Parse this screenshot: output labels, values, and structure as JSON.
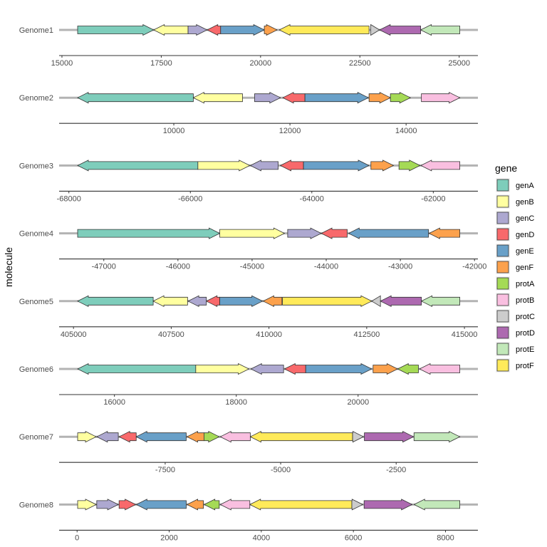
{
  "chart_data": {
    "type": "gene-arrow-map",
    "ylabel": "molecule",
    "legend": {
      "title": "gene",
      "placement": "right"
    },
    "colors": {
      "genA": "#7ECDBB",
      "genB": "#FFFFA0",
      "genC": "#ADA8D0",
      "genD": "#F8696B",
      "genE": "#69A0C8",
      "genF": "#FCA14C",
      "protA": "#A5DA56",
      "protB": "#F9BFE0",
      "protC": "#CCCCCC",
      "protD": "#AD69B0",
      "protE": "#C2E8B9",
      "protF": "#FFEA5A"
    },
    "legend_entries": [
      "genA",
      "genB",
      "genC",
      "genD",
      "genE",
      "genF",
      "protA",
      "protB",
      "protC",
      "protD",
      "protE",
      "protF"
    ],
    "facets": [
      {
        "molecule": "Genome1",
        "ticks": [
          15000,
          17500,
          20000,
          22500,
          25000
        ],
        "genes": [
          {
            "gene": "genA",
            "start": 15395,
            "end": 17309
          },
          {
            "gene": "genB",
            "start": 18175,
            "end": 17309
          },
          {
            "gene": "genC",
            "start": 18175,
            "end": 18654
          },
          {
            "gene": "genD",
            "start": 18995,
            "end": 18654
          },
          {
            "gene": "genE",
            "start": 18995,
            "end": 20094
          },
          {
            "gene": "genF",
            "start": 20094,
            "end": 20417
          },
          {
            "gene": "protF",
            "start": 22731,
            "end": 20471
          },
          {
            "gene": "protC",
            "start": 22774,
            "end": 22995
          },
          {
            "gene": "protD",
            "start": 24030,
            "end": 22995
          },
          {
            "gene": "protE",
            "start": 25016,
            "end": 24030
          }
        ]
      },
      {
        "molecule": "Genome2",
        "ticks": [
          10000,
          12000,
          14000
        ],
        "genes": [
          {
            "gene": "genA",
            "start": 10336,
            "end": 8344
          },
          {
            "gene": "genB",
            "start": 11183,
            "end": 10336
          },
          {
            "gene": "genC",
            "start": 11391,
            "end": 11837
          },
          {
            "gene": "genD",
            "start": 12258,
            "end": 11877
          },
          {
            "gene": "genE",
            "start": 12258,
            "end": 13350
          },
          {
            "gene": "genF",
            "start": 13362,
            "end": 13730
          },
          {
            "gene": "protA",
            "start": 13730,
            "end": 14074
          },
          {
            "gene": "protB",
            "start": 14263,
            "end": 14925
          }
        ]
      },
      {
        "molecule": "Genome3",
        "ticks": [
          -68000,
          -66000,
          -64000,
          -62000
        ],
        "genes": [
          {
            "gene": "genA",
            "start": -65876,
            "end": -67856
          },
          {
            "gene": "genB",
            "start": -65876,
            "end": -65021
          },
          {
            "gene": "genC",
            "start": -64554,
            "end": -65013
          },
          {
            "gene": "genD",
            "start": -64137,
            "end": -64519
          },
          {
            "gene": "genE",
            "start": -64137,
            "end": -63059
          },
          {
            "gene": "genF",
            "start": -63027,
            "end": -62655
          },
          {
            "gene": "protA",
            "start": -62565,
            "end": -62218
          },
          {
            "gene": "protB",
            "start": -61563,
            "end": -62205
          }
        ]
      },
      {
        "molecule": "Genome4",
        "ticks": [
          -47000,
          -46000,
          -45000,
          -44000,
          -43000,
          -42000
        ],
        "genes": [
          {
            "gene": "genA",
            "start": -47353,
            "end": -45436
          },
          {
            "gene": "genB",
            "start": -45436,
            "end": -44563
          },
          {
            "gene": "genC",
            "start": -44520,
            "end": -44067
          },
          {
            "gene": "genD",
            "start": -43717,
            "end": -44067
          },
          {
            "gene": "genE",
            "start": -42621,
            "end": -43699
          },
          {
            "gene": "genF",
            "start": -42198,
            "end": -42613
          }
        ]
      },
      {
        "molecule": "Genome5",
        "ticks": [
          405000,
          407500,
          410000,
          412500,
          415000
        ],
        "genes": [
          {
            "gene": "genA",
            "start": 407039,
            "end": 405106
          },
          {
            "gene": "genB",
            "start": 407918,
            "end": 407039
          },
          {
            "gene": "genC",
            "start": 408399,
            "end": 407932
          },
          {
            "gene": "genD",
            "start": 408742,
            "end": 408399
          },
          {
            "gene": "genE",
            "start": 408742,
            "end": 409836
          },
          {
            "gene": "genF",
            "start": 410332,
            "end": 409851
          },
          {
            "gene": "protF",
            "start": 410346,
            "end": 412628
          },
          {
            "gene": "protC",
            "start": 412852,
            "end": 412628
          },
          {
            "gene": "protD",
            "start": 413899,
            "end": 412852
          },
          {
            "gene": "protE",
            "start": 414882,
            "end": 413899
          }
        ]
      },
      {
        "molecule": "Genome6",
        "ticks": [
          16000,
          18000,
          20000
        ],
        "genes": [
          {
            "gene": "genA",
            "start": 17335,
            "end": 15396
          },
          {
            "gene": "genB",
            "start": 17335,
            "end": 18208
          },
          {
            "gene": "genC",
            "start": 18777,
            "end": 18240
          },
          {
            "gene": "genD",
            "start": 19140,
            "end": 18791
          },
          {
            "gene": "genE",
            "start": 19140,
            "end": 20224
          },
          {
            "gene": "genF",
            "start": 20246,
            "end": 20649
          },
          {
            "gene": "protA",
            "start": 20990,
            "end": 20649
          },
          {
            "gene": "protB",
            "start": 21670,
            "end": 21008
          }
        ]
      },
      {
        "molecule": "Genome7",
        "ticks": [
          -7500,
          -5000,
          -2500
        ],
        "genes": [
          {
            "gene": "genB",
            "start": -9395,
            "end": -8994
          },
          {
            "gene": "genC",
            "start": -8515,
            "end": -8981
          },
          {
            "gene": "genD",
            "start": -8127,
            "end": -8498
          },
          {
            "gene": "genE",
            "start": -7045,
            "end": -8127
          },
          {
            "gene": "genF",
            "start": -6660,
            "end": -7028
          },
          {
            "gene": "protA",
            "start": -6660,
            "end": -6330
          },
          {
            "gene": "protB",
            "start": -5657,
            "end": -6307
          },
          {
            "gene": "protF",
            "start": -3443,
            "end": -5657
          },
          {
            "gene": "protC",
            "start": -3443,
            "end": -3207
          },
          {
            "gene": "protD",
            "start": -3188,
            "end": -2125
          },
          {
            "gene": "protE",
            "start": -2114,
            "end": -1122
          }
        ]
      },
      {
        "molecule": "Genome8",
        "ticks": [
          0,
          2000,
          4000,
          6000,
          8000
        ],
        "genes": [
          {
            "gene": "genB",
            "start": 12,
            "end": 415
          },
          {
            "gene": "genC",
            "start": 427,
            "end": 895
          },
          {
            "gene": "genD",
            "start": 912,
            "end": 1274
          },
          {
            "gene": "genE",
            "start": 2370,
            "end": 1285
          },
          {
            "gene": "genF",
            "start": 2743,
            "end": 2387
          },
          {
            "gene": "protA",
            "start": 3087,
            "end": 2760
          },
          {
            "gene": "protB",
            "start": 3751,
            "end": 3110
          },
          {
            "gene": "protF",
            "start": 5966,
            "end": 3751
          },
          {
            "gene": "protC",
            "start": 5966,
            "end": 6203
          },
          {
            "gene": "protD",
            "start": 6232,
            "end": 7276
          },
          {
            "gene": "protE",
            "start": 8311,
            "end": 7316
          }
        ]
      }
    ]
  }
}
